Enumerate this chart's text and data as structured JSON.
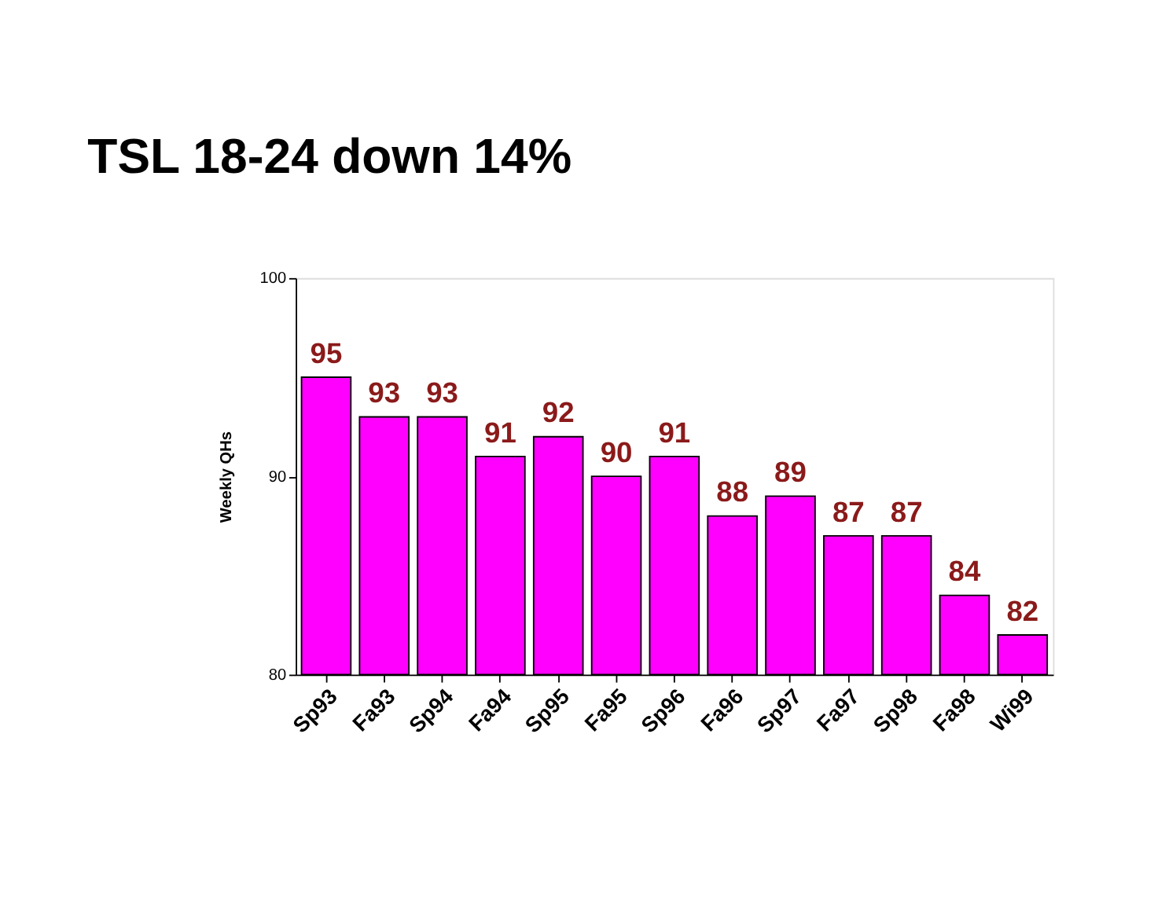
{
  "chart_data": {
    "type": "bar",
    "title": "TSL 18-24 down 14%",
    "ylabel": "Weekly QHs",
    "categories": [
      "Sp93",
      "Fa93",
      "Sp94",
      "Fa94",
      "Sp95",
      "Fa95",
      "Sp96",
      "Fa96",
      "Sp97",
      "Fa97",
      "Sp98",
      "Fa98",
      "Wi99"
    ],
    "values": [
      95,
      93,
      93,
      91,
      92,
      90,
      91,
      88,
      89,
      87,
      87,
      84,
      82
    ],
    "color": "#ff00ff",
    "ylim": [
      80,
      100
    ],
    "yticks": [
      80,
      90,
      100
    ],
    "grid": false,
    "data_labels": true
  }
}
